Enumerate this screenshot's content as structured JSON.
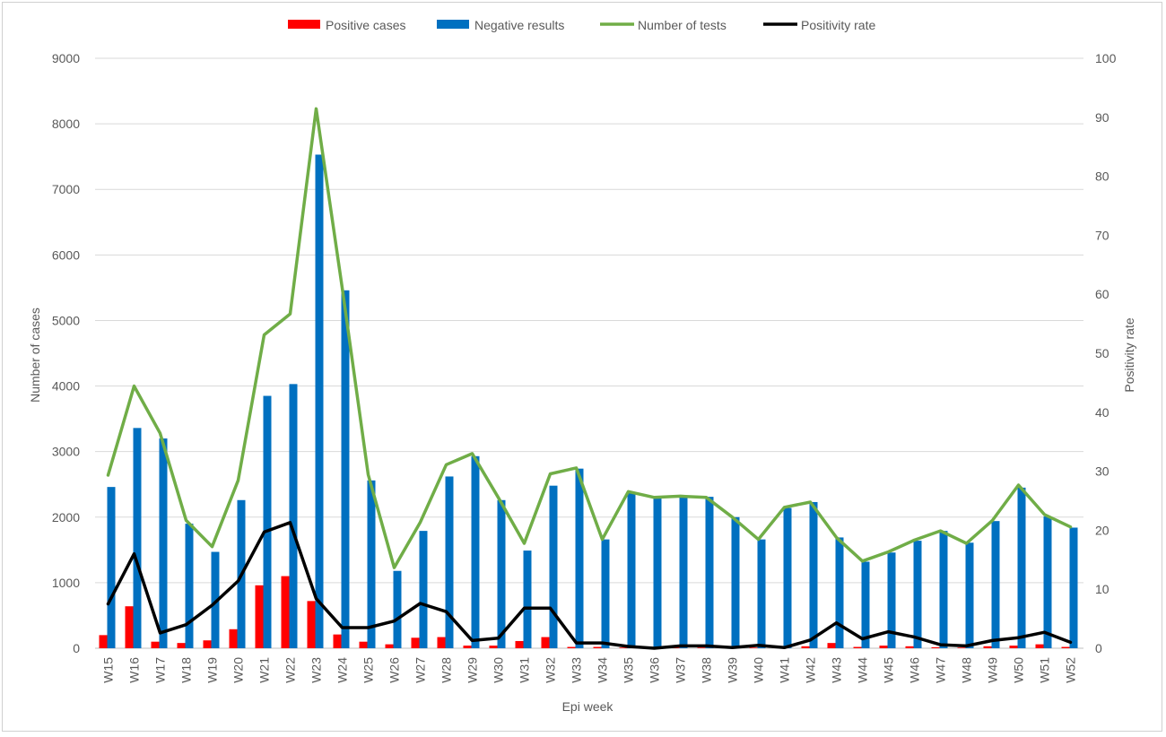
{
  "chart_data": {
    "type": "bar",
    "title": "",
    "xlabel": "Epi week",
    "ylabel": "Number  of cases",
    "y2label": "Positivity rate",
    "ylim": [
      0,
      9000
    ],
    "y2lim": [
      0,
      100
    ],
    "yticks": [
      "0",
      "1000",
      "2000",
      "3000",
      "4000",
      "5000",
      "6000",
      "7000",
      "8000",
      "9000"
    ],
    "y2ticks": [
      "0",
      "10",
      "20",
      "30",
      "40",
      "50",
      "60",
      "70",
      "80",
      "90",
      "100"
    ],
    "grid": true,
    "legend_position": "top",
    "categories": [
      "W15",
      "W16",
      "W17",
      "W18",
      "W19",
      "W20",
      "W21",
      "W22",
      "W23",
      "W24",
      "W25",
      "W26",
      "W27",
      "W28",
      "W29",
      "W30",
      "W31",
      "W32",
      "W33",
      "W34",
      "W35",
      "W36",
      "W37",
      "W38",
      "W39",
      "W40",
      "W41",
      "W42",
      "W43",
      "W44",
      "W45",
      "W46",
      "W47",
      "W48",
      "W49",
      "W50",
      "W51",
      "W52"
    ],
    "series": [
      {
        "name": "Positive cases",
        "kind": "bar",
        "axis": "left",
        "color": "#ff0000",
        "values": [
          200,
          640,
          100,
          80,
          120,
          290,
          960,
          1100,
          720,
          210,
          100,
          60,
          160,
          170,
          40,
          40,
          110,
          170,
          20,
          20,
          10,
          5,
          10,
          10,
          5,
          10,
          5,
          30,
          80,
          20,
          40,
          30,
          15,
          10,
          30,
          40,
          60,
          20
        ]
      },
      {
        "name": "Negative results",
        "kind": "bar",
        "axis": "left",
        "color": "#0070c0",
        "values": [
          2460,
          3360,
          3200,
          1900,
          1470,
          2260,
          3850,
          4030,
          7530,
          5460,
          2560,
          1180,
          1790,
          2620,
          2930,
          2260,
          1490,
          2480,
          2740,
          1660,
          2370,
          2290,
          2300,
          2310,
          2000,
          1660,
          2140,
          2230,
          1690,
          1320,
          1460,
          1640,
          1790,
          1610,
          1940,
          2450,
          2010,
          1840
        ]
      },
      {
        "name": "Number of tests",
        "kind": "line",
        "axis": "left",
        "color": "#70ad47",
        "values": [
          2640,
          4000,
          3280,
          1950,
          1550,
          2560,
          4780,
          5100,
          8230,
          5500,
          2650,
          1230,
          1920,
          2800,
          2970,
          2300,
          1600,
          2660,
          2750,
          1660,
          2390,
          2300,
          2320,
          2300,
          2000,
          1660,
          2150,
          2230,
          1690,
          1330,
          1470,
          1650,
          1790,
          1600,
          1950,
          2490,
          2040,
          1850
        ]
      },
      {
        "name": "Positivity rate",
        "kind": "line",
        "axis": "right",
        "color": "#000000",
        "values": [
          7.5,
          16,
          2.6,
          4,
          7.3,
          11.4,
          19.7,
          21.3,
          8.4,
          3.5,
          3.5,
          4.6,
          7.6,
          6.2,
          1.3,
          1.7,
          6.8,
          6.8,
          0.9,
          0.9,
          0.3,
          0,
          0.4,
          0.4,
          0.1,
          0.5,
          0.1,
          1.4,
          4.3,
          1.6,
          2.8,
          1.9,
          0.6,
          0.4,
          1.3,
          1.8,
          2.7,
          1
        ]
      }
    ]
  }
}
